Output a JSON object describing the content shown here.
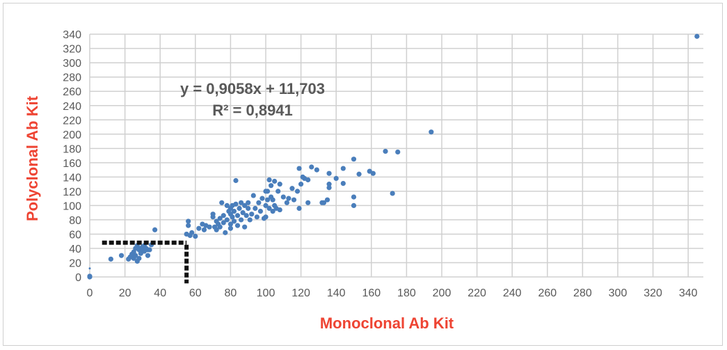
{
  "chart_data": {
    "type": "scatter",
    "title": "",
    "xlabel": "Monoclonal Ab Kit",
    "ylabel": "Polyclonal Ab Kit",
    "xlim": [
      0,
      345
    ],
    "ylim": [
      0,
      340
    ],
    "xticks": [
      0,
      20,
      40,
      60,
      80,
      100,
      120,
      140,
      160,
      180,
      200,
      220,
      240,
      260,
      280,
      300,
      320,
      340
    ],
    "yticks": [
      0,
      20,
      40,
      60,
      80,
      100,
      120,
      140,
      160,
      180,
      200,
      220,
      240,
      260,
      280,
      300,
      320,
      340
    ],
    "grid": true,
    "marker_color": "#4a7ebb",
    "axis_title_color": "#ee4433",
    "trendline_equation": "y = 0,9058x + 11,703",
    "r_squared": "R² = 0,8941",
    "cutoff_lines": {
      "x": 55,
      "y": 48,
      "style": "dashed",
      "color": "#111111"
    },
    "points": [
      [
        0,
        0
      ],
      [
        0,
        1
      ],
      [
        0,
        12
      ],
      [
        12,
        25
      ],
      [
        18,
        30
      ],
      [
        22,
        25
      ],
      [
        23,
        28
      ],
      [
        24,
        32
      ],
      [
        25,
        35
      ],
      [
        25,
        26
      ],
      [
        26,
        40
      ],
      [
        26,
        30
      ],
      [
        27,
        22
      ],
      [
        27,
        44
      ],
      [
        28,
        38
      ],
      [
        28,
        26
      ],
      [
        29,
        33
      ],
      [
        29,
        40
      ],
      [
        30,
        42
      ],
      [
        30,
        36
      ],
      [
        31,
        36
      ],
      [
        31,
        44
      ],
      [
        32,
        40
      ],
      [
        33,
        30
      ],
      [
        33,
        38
      ],
      [
        34,
        38
      ],
      [
        35,
        45
      ],
      [
        37,
        66
      ],
      [
        55,
        60
      ],
      [
        56,
        72
      ],
      [
        56,
        78
      ],
      [
        57,
        58
      ],
      [
        58,
        62
      ],
      [
        60,
        57
      ],
      [
        62,
        68
      ],
      [
        64,
        74
      ],
      [
        65,
        66
      ],
      [
        66,
        72
      ],
      [
        68,
        70
      ],
      [
        70,
        84
      ],
      [
        70,
        88
      ],
      [
        71,
        70
      ],
      [
        72,
        66
      ],
      [
        72,
        78
      ],
      [
        73,
        74
      ],
      [
        74,
        70
      ],
      [
        74,
        82
      ],
      [
        75,
        104
      ],
      [
        76,
        76
      ],
      [
        76,
        86
      ],
      [
        77,
        62
      ],
      [
        78,
        80
      ],
      [
        78,
        100
      ],
      [
        79,
        92
      ],
      [
        80,
        68
      ],
      [
        80,
        74
      ],
      [
        80,
        88
      ],
      [
        80,
        96
      ],
      [
        81,
        84
      ],
      [
        81,
        100
      ],
      [
        82,
        92
      ],
      [
        82,
        78
      ],
      [
        83,
        102
      ],
      [
        83,
        135
      ],
      [
        84,
        72
      ],
      [
        84,
        86
      ],
      [
        85,
        96
      ],
      [
        86,
        80
      ],
      [
        86,
        104
      ],
      [
        87,
        90
      ],
      [
        88,
        70
      ],
      [
        88,
        100
      ],
      [
        89,
        86
      ],
      [
        90,
        96
      ],
      [
        90,
        104
      ],
      [
        91,
        80
      ],
      [
        92,
        88
      ],
      [
        93,
        114
      ],
      [
        94,
        96
      ],
      [
        95,
        84
      ],
      [
        96,
        104
      ],
      [
        97,
        92
      ],
      [
        98,
        110
      ],
      [
        99,
        82
      ],
      [
        100,
        84
      ],
      [
        100,
        100
      ],
      [
        100,
        120
      ],
      [
        101,
        120
      ],
      [
        101,
        108
      ],
      [
        102,
        136
      ],
      [
        102,
        96
      ],
      [
        103,
        128
      ],
      [
        103,
        112
      ],
      [
        104,
        108
      ],
      [
        104,
        92
      ],
      [
        105,
        134
      ],
      [
        105,
        100
      ],
      [
        106,
        96
      ],
      [
        107,
        120
      ],
      [
        108,
        130
      ],
      [
        108,
        94
      ],
      [
        110,
        112
      ],
      [
        112,
        104
      ],
      [
        113,
        110
      ],
      [
        115,
        124
      ],
      [
        116,
        108
      ],
      [
        118,
        120
      ],
      [
        119,
        96
      ],
      [
        119,
        152
      ],
      [
        120,
        130
      ],
      [
        121,
        140
      ],
      [
        122,
        138
      ],
      [
        124,
        136
      ],
      [
        124,
        104
      ],
      [
        126,
        154
      ],
      [
        129,
        150
      ],
      [
        132,
        104
      ],
      [
        133,
        104
      ],
      [
        135,
        108
      ],
      [
        136,
        145
      ],
      [
        136,
        130
      ],
      [
        136,
        125
      ],
      [
        140,
        138
      ],
      [
        144,
        152
      ],
      [
        144,
        131
      ],
      [
        150,
        165
      ],
      [
        150,
        112
      ],
      [
        150,
        100
      ],
      [
        153,
        144
      ],
      [
        159,
        148
      ],
      [
        161,
        145
      ],
      [
        168,
        176
      ],
      [
        172,
        117
      ],
      [
        175,
        175
      ],
      [
        194,
        203
      ],
      [
        345,
        337
      ]
    ]
  }
}
